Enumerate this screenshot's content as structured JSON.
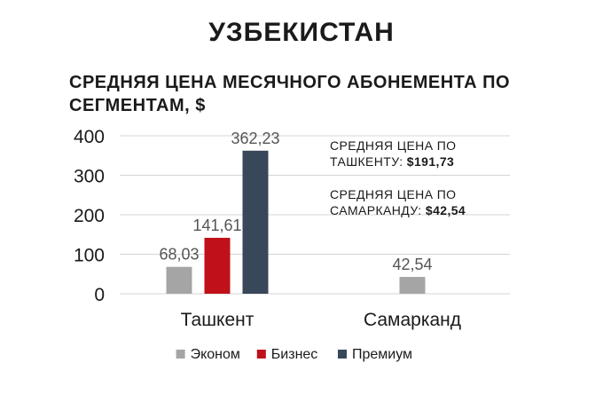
{
  "header": {
    "title": "УЗБЕКИСТАН"
  },
  "chart_data": {
    "type": "bar",
    "title": "СРЕДНЯЯ ЦЕНА МЕСЯЧНОГО АБОНЕМЕНТА ПО СЕГМЕНТАМ, $",
    "xlabel": "",
    "ylabel": "",
    "categories": [
      "Ташкент",
      "Самарканд"
    ],
    "series": [
      {
        "name": "Эконом",
        "color": "#a5a5a5",
        "values": [
          68.03,
          42.54
        ],
        "labels": [
          "68,03",
          "42,54"
        ]
      },
      {
        "name": "Бизнес",
        "color": "#c0101a",
        "values": [
          141.61,
          null
        ],
        "labels": [
          "141,61",
          ""
        ]
      },
      {
        "name": "Премиум",
        "color": "#38475a",
        "values": [
          362.23,
          null
        ],
        "labels": [
          "362,23",
          ""
        ]
      }
    ],
    "ylim": [
      0,
      400
    ],
    "yticks": [
      0,
      100,
      200,
      300,
      400
    ],
    "grid": true,
    "legend": "bottom"
  },
  "annotations": [
    {
      "line1": "СРЕДНЯЯ ЦЕНА ПО",
      "line2_prefix": "ТАШКЕНТУ: ",
      "value": "$191,73"
    },
    {
      "line1": "СРЕДНЯЯ ЦЕНА ПО",
      "line2_prefix": "САМАРКАНДУ: ",
      "value": "$42,54"
    }
  ]
}
